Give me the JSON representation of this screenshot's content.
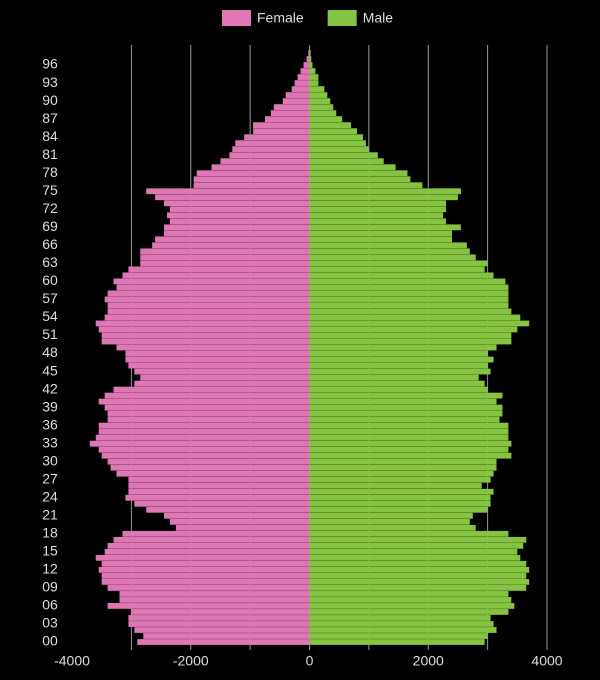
{
  "chart_data": {
    "type": "pyramid",
    "categories": [
      "00",
      null,
      null,
      "03",
      null,
      null,
      "06",
      null,
      null,
      "09",
      null,
      null,
      "12",
      null,
      null,
      "15",
      null,
      null,
      "18",
      null,
      null,
      "21",
      null,
      null,
      "24",
      null,
      null,
      "27",
      null,
      null,
      "30",
      null,
      null,
      "33",
      null,
      null,
      "36",
      null,
      null,
      "39",
      null,
      null,
      "42",
      null,
      null,
      "45",
      null,
      null,
      "48",
      null,
      null,
      "51",
      null,
      null,
      "54",
      null,
      null,
      "57",
      null,
      null,
      "60",
      null,
      null,
      "63",
      null,
      null,
      "66",
      null,
      null,
      "69",
      null,
      null,
      "72",
      null,
      null,
      "75",
      null,
      null,
      "78",
      null,
      null,
      "81",
      null,
      null,
      "84",
      null,
      null,
      "87",
      null,
      null,
      "90",
      null,
      null,
      "93",
      null,
      null,
      "96",
      null,
      null
    ],
    "series": [
      {
        "name": "Female",
        "color": "#de77b4",
        "values": [
          -2900,
          -2800,
          -2950,
          -3050,
          -3050,
          -3000,
          -3400,
          -3200,
          -3200,
          -3400,
          -3500,
          -3500,
          -3550,
          -3500,
          -3600,
          -3450,
          -3400,
          -3300,
          -3150,
          -2250,
          -2350,
          -2450,
          -2750,
          -2950,
          -3100,
          -3050,
          -3050,
          -3050,
          -3250,
          -3350,
          -3400,
          -3500,
          -3550,
          -3700,
          -3600,
          -3550,
          -3550,
          -3400,
          -3400,
          -3450,
          -3550,
          -3450,
          -3300,
          -2950,
          -2850,
          -2950,
          -3050,
          -3100,
          -3100,
          -3250,
          -3500,
          -3500,
          -3550,
          -3600,
          -3450,
          -3400,
          -3400,
          -3450,
          -3400,
          -3250,
          -3300,
          -3150,
          -3050,
          -2850,
          -2850,
          -2850,
          -2650,
          -2600,
          -2450,
          -2450,
          -2350,
          -2400,
          -2350,
          -2450,
          -2600,
          -2750,
          -1950,
          -1950,
          -1900,
          -1650,
          -1500,
          -1350,
          -1300,
          -1250,
          -1100,
          -950,
          -950,
          -750,
          -650,
          -600,
          -450,
          -400,
          -300,
          -250,
          -200,
          -150,
          -100,
          -50,
          -20
        ]
      },
      {
        "name": "Male",
        "color": "#84c441",
        "values": [
          2950,
          3000,
          3150,
          3100,
          3050,
          3350,
          3450,
          3400,
          3350,
          3650,
          3700,
          3650,
          3700,
          3650,
          3550,
          3500,
          3600,
          3650,
          3350,
          2800,
          2700,
          2750,
          3000,
          3050,
          3050,
          3100,
          2900,
          3050,
          3100,
          3150,
          3150,
          3400,
          3350,
          3400,
          3350,
          3350,
          3350,
          3200,
          3250,
          3250,
          3150,
          3250,
          3000,
          2950,
          2850,
          3050,
          3000,
          3100,
          3000,
          3150,
          3400,
          3400,
          3500,
          3700,
          3550,
          3400,
          3350,
          3350,
          3350,
          3350,
          3300,
          3100,
          2950,
          3000,
          2800,
          2700,
          2650,
          2400,
          2400,
          2550,
          2300,
          2250,
          2300,
          2300,
          2500,
          2550,
          1900,
          1700,
          1650,
          1450,
          1250,
          1150,
          1000,
          950,
          900,
          800,
          700,
          550,
          450,
          400,
          350,
          300,
          250,
          150,
          150,
          100,
          50,
          30,
          20
        ]
      }
    ],
    "xlim": [
      -4000,
      4000
    ],
    "xticks": [
      -4000,
      -2000,
      0,
      2000,
      4000
    ],
    "grid": true,
    "legend": "top"
  }
}
